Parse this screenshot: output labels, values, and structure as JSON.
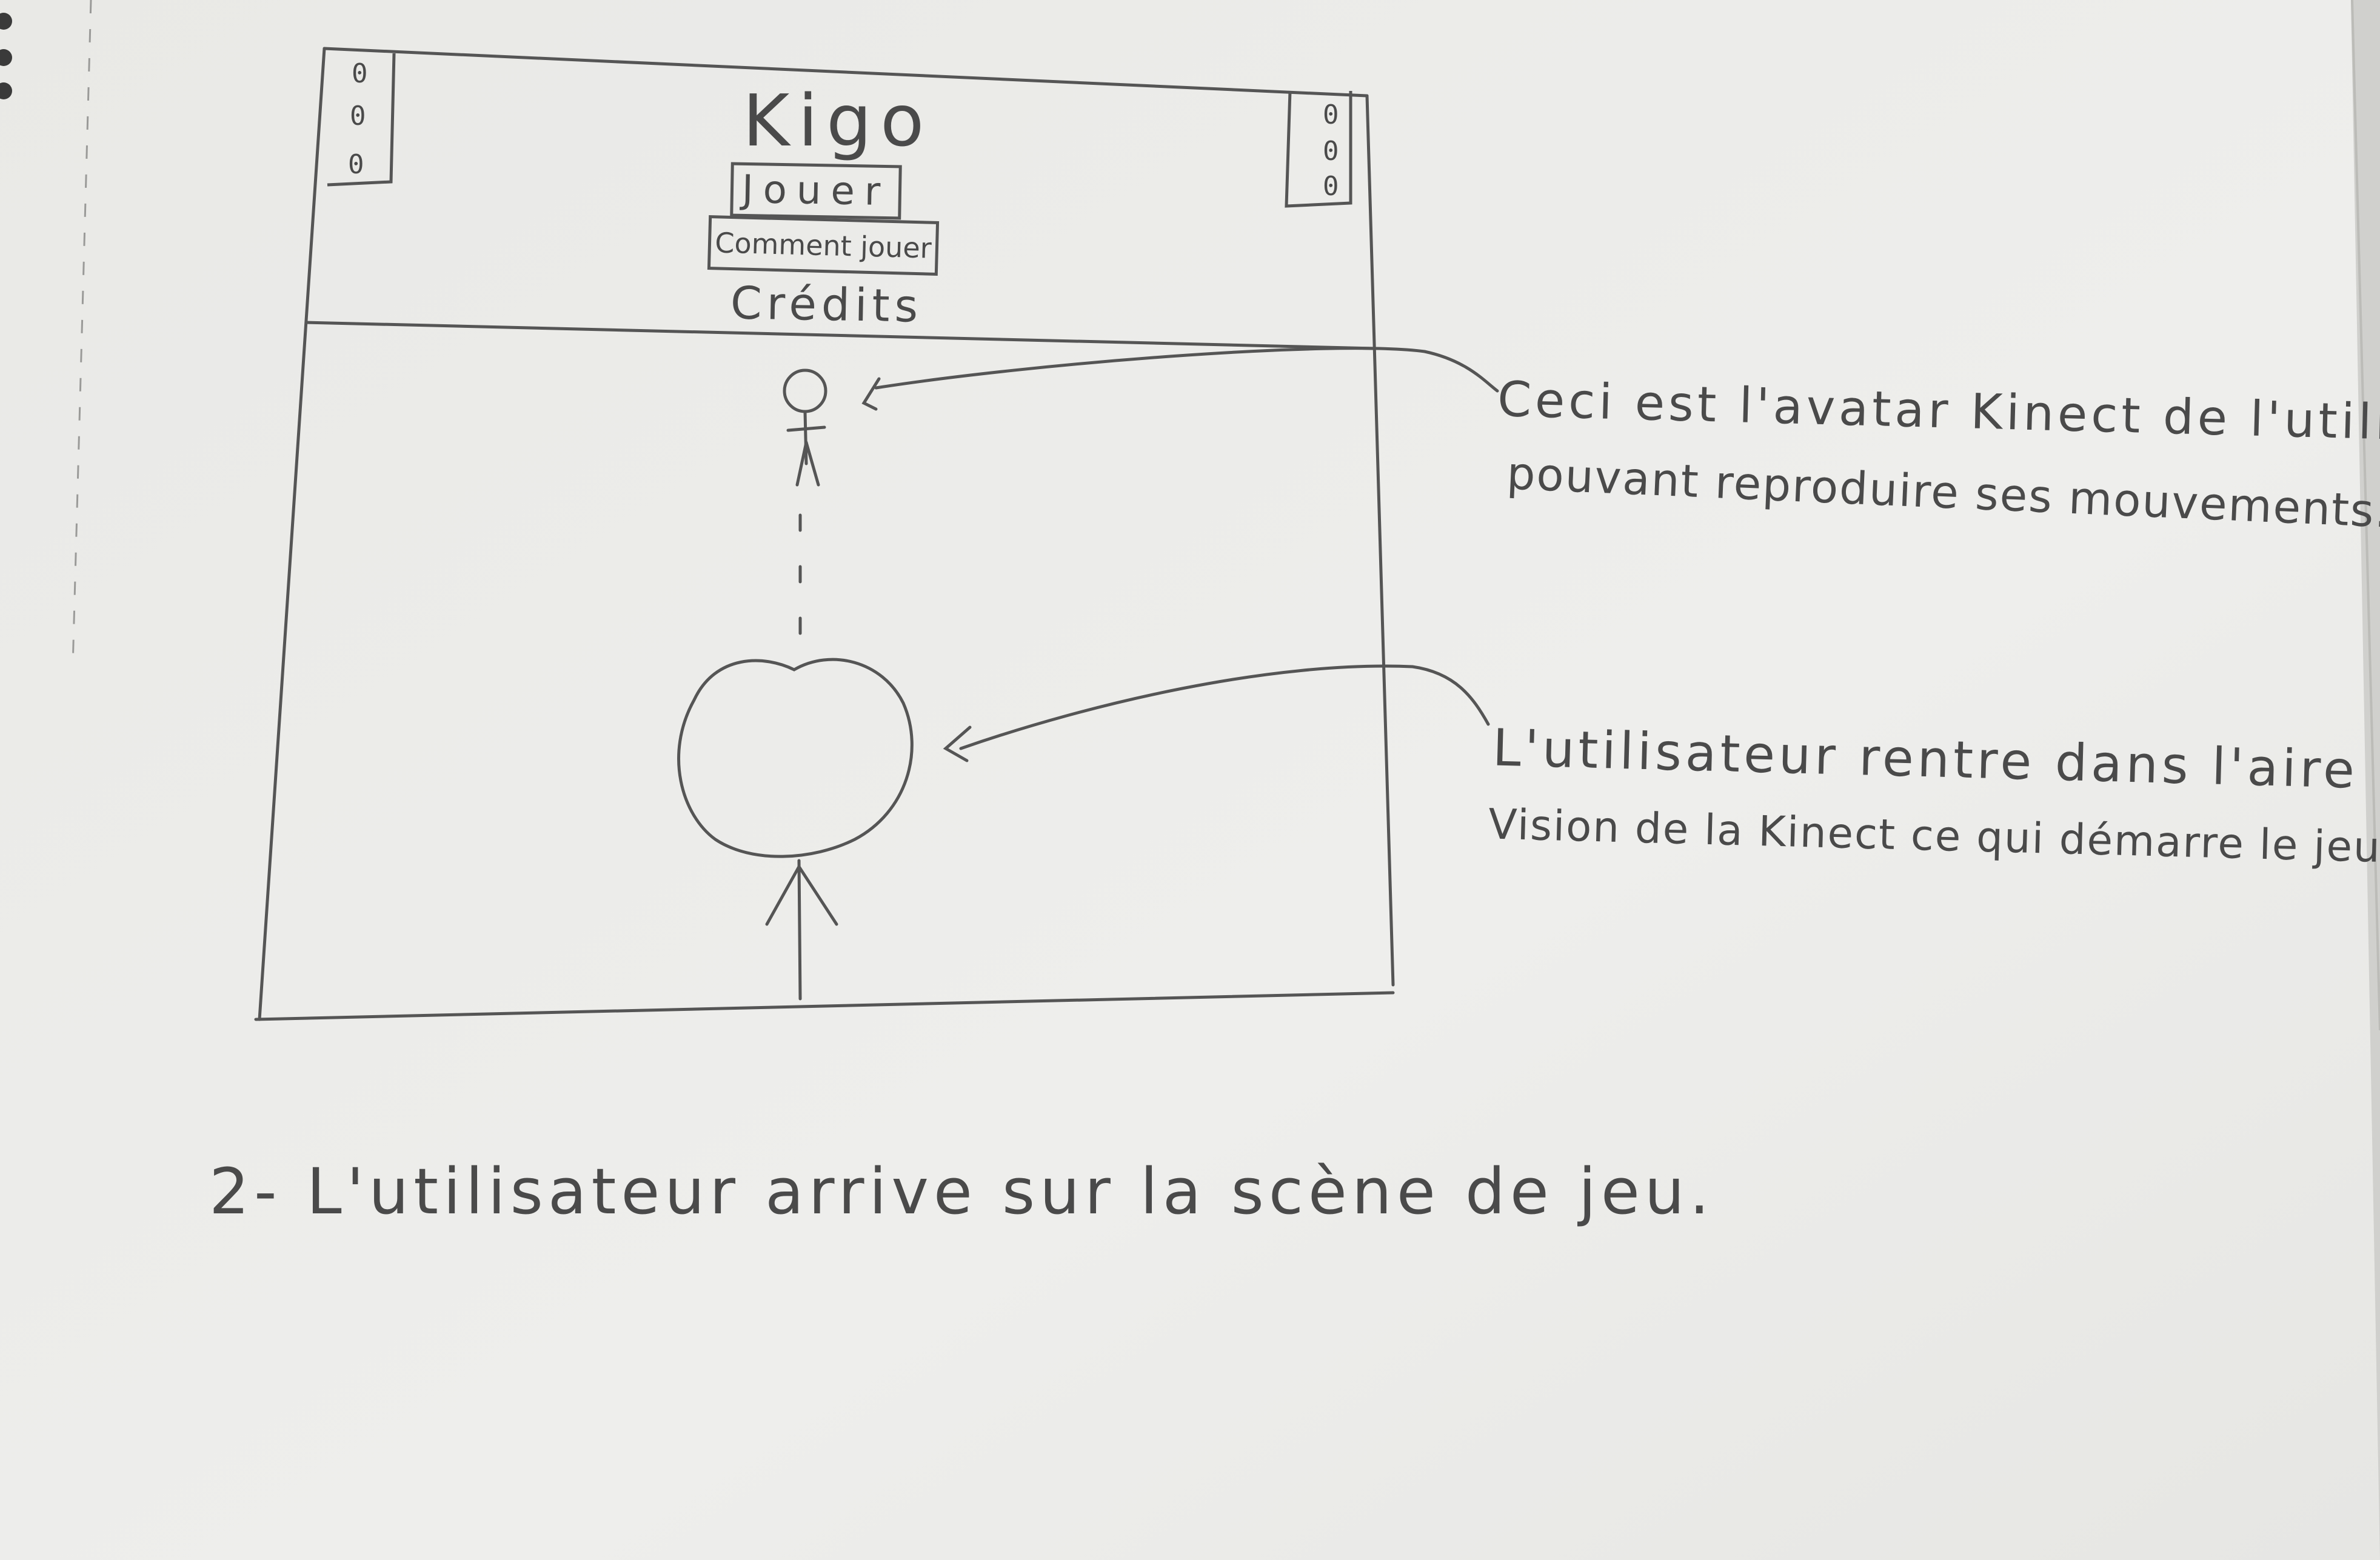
{
  "sketch": {
    "title": "Kigo",
    "buttons": {
      "play": "Jouer",
      "how_to_play": "Comment jouer",
      "credits": "Crédits"
    },
    "corner_dots_left": [
      "0",
      "0",
      "0"
    ],
    "corner_dots_right": [
      "0",
      "0",
      "0"
    ]
  },
  "annotations": {
    "avatar": {
      "line1": "Ceci est l'avatar Kinect de l'utilisateur",
      "line2": "pouvant reproduire ses mouvements."
    },
    "user": {
      "line1": "L'utilisateur rentre dans l'aire de",
      "line2": "Vision de la Kinect ce qui démarre le jeu."
    }
  },
  "caption": "2- L'utilisateur arrive sur la scène de jeu.",
  "colors": {
    "paper": "#ededeb",
    "pencil": "#4a4a4a"
  }
}
